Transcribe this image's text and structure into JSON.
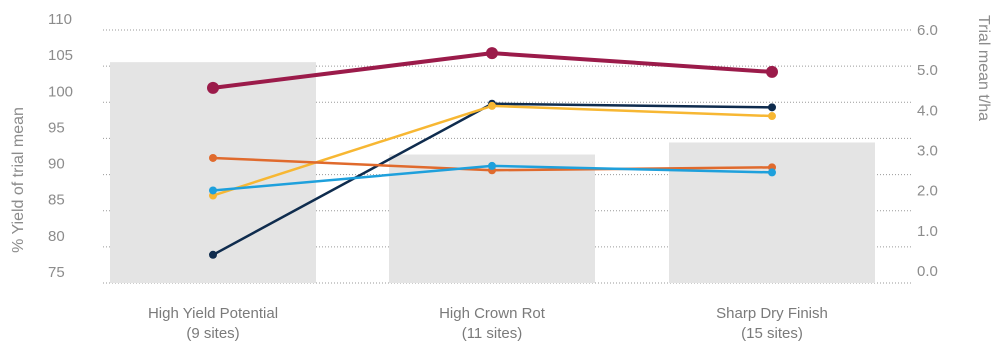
{
  "chart_data": {
    "type": "bar+line",
    "categories": [
      {
        "name": "High Yield Potential",
        "sub": "(9 sites)"
      },
      {
        "name": "High Crown Rot",
        "sub": "(11 sites)"
      },
      {
        "name": "Sharp Dry Finish",
        "sub": "(15 sites)"
      }
    ],
    "y_left": {
      "label": "% Yield of trial mean",
      "min": 75,
      "max": 110,
      "ticks": [
        "110",
        "105",
        "100",
        "95",
        "90",
        "85",
        "80",
        "75"
      ]
    },
    "y_right": {
      "label": "Trial mean t/ha",
      "min": 0,
      "max": 6,
      "ticks": [
        "6.0",
        "5.0",
        "4.0",
        "3.0",
        "2.0",
        "1.0",
        "0.0"
      ]
    },
    "bars": {
      "axis": "right",
      "color": "#e4e4e4",
      "values": [
        5.2,
        2.9,
        3.2
      ]
    },
    "series": [
      {
        "color": "#9b1b4a",
        "values": [
          102.0,
          106.8,
          104.2
        ],
        "big": true
      },
      {
        "color": "#0f2c4e",
        "values": [
          78.9,
          99.8,
          99.3
        ]
      },
      {
        "color": "#f7b733",
        "values": [
          87.1,
          99.5,
          98.1
        ]
      },
      {
        "color": "#e06a2d",
        "values": [
          92.3,
          90.6,
          91.0
        ]
      },
      {
        "color": "#1ea0dc",
        "values": [
          87.8,
          91.2,
          90.3
        ]
      }
    ]
  }
}
